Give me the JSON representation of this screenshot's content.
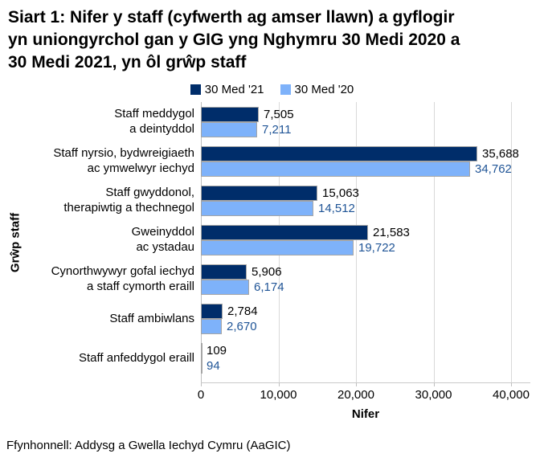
{
  "title": "Siart 1: Nifer y staff (cyfwerth ag amser llawn) a gyflogir yn uniongyrchol gan y GIG yng Nghymru 30 Medi 2020 a 30 Medi 2021, yn ôl grŵp staff",
  "title_lines": [
    "Siart 1: Nifer y staff (cyfwerth ag amser llawn) a gyflogir",
    "yn uniongyrchol gan y GIG yng Nghymru 30 Medi 2020 a",
    "30 Medi 2021, yn ôl grŵp staff"
  ],
  "chart_data": {
    "type": "bar",
    "orientation": "horizontal",
    "title": "Siart 1: Nifer y staff (cyfwerth ag amser llawn) a gyflogir yn uniongyrchol gan y GIG yng Nghymru 30 Medi 2020 a 30 Medi 2021, yn ôl grŵp staff",
    "categories": [
      [
        "Staff meddygol",
        "a deintyddol"
      ],
      [
        "Staff nyrsio, bydwreigiaeth",
        "ac ymwelwyr iechyd"
      ],
      [
        "Staff gwyddonol,",
        "therapiwtig a thechnegol"
      ],
      [
        "Gweinyddol",
        "ac ystadau"
      ],
      [
        "Cynorthwywyr gofal iechyd",
        "a staff cymorth eraill"
      ],
      [
        "Staff ambiwlans"
      ],
      [
        "Staff anfeddygol eraill"
      ]
    ],
    "series": [
      {
        "name": "30 Med '21",
        "color": "#002D6A",
        "label_color": "#000000",
        "values": [
          7505,
          35688,
          15063,
          21583,
          5906,
          2784,
          109
        ]
      },
      {
        "name": "30 Med '20",
        "color": "#7EB2FA",
        "label_color": "#1F5496",
        "values": [
          7211,
          34762,
          14512,
          19722,
          6174,
          2670,
          94
        ]
      }
    ],
    "xlabel": "Nifer",
    "ylabel": "Grŵp staff",
    "xlim": [
      0,
      40000
    ],
    "xticks": [
      0,
      10000,
      20000,
      30000,
      40000
    ],
    "xtick_labels": [
      "0",
      "10,000",
      "20,000",
      "30,000",
      "40,000"
    ],
    "grid": true,
    "legend_position": "top",
    "bar_border_color": "#A6A6A6"
  },
  "source": "Ffynhonnell: Addysg a Gwella Iechyd Cymru (AaGIC)"
}
